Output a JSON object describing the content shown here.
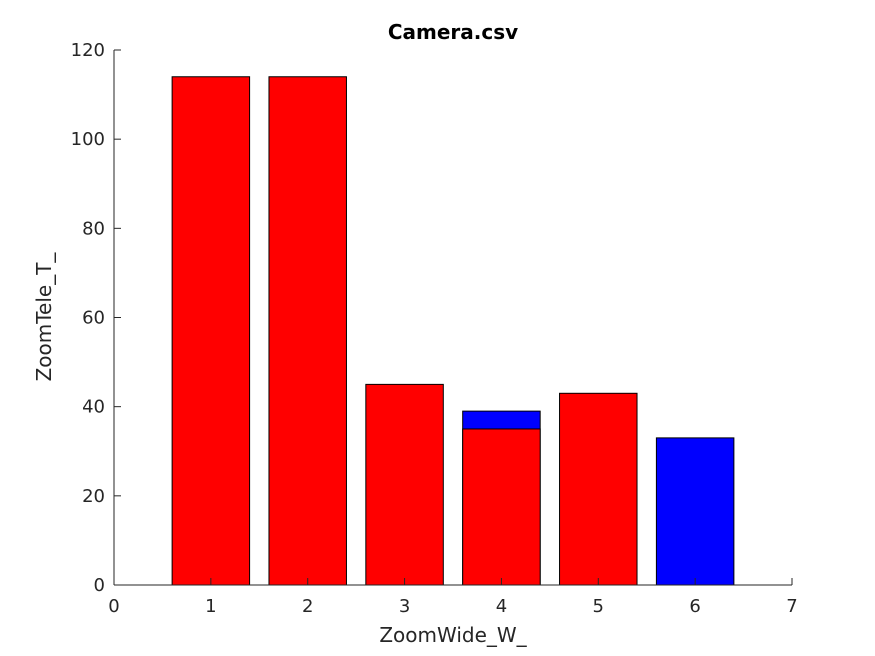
{
  "chart_data": {
    "type": "bar",
    "title": "Camera.csv",
    "xlabel": "ZoomWide_W_",
    "ylabel": "ZoomTele_T_",
    "xlim": [
      0,
      7
    ],
    "ylim": [
      0,
      120
    ],
    "xticks": [
      0,
      1,
      2,
      3,
      4,
      5,
      6,
      7
    ],
    "yticks": [
      0,
      20,
      40,
      60,
      80,
      100,
      120
    ],
    "grid": false,
    "colors": {
      "red": "#ff0000",
      "blue": "#0000ff",
      "edge": "#000000",
      "axis": "#262626"
    },
    "bars": [
      {
        "x": 1,
        "layers": [
          {
            "color": "#ff0000",
            "value": 114
          }
        ]
      },
      {
        "x": 2,
        "layers": [
          {
            "color": "#ff0000",
            "value": 114
          }
        ]
      },
      {
        "x": 3,
        "layers": [
          {
            "color": "#ff0000",
            "value": 45
          }
        ]
      },
      {
        "x": 4,
        "layers": [
          {
            "color": "#0000ff",
            "value": 39
          },
          {
            "color": "#ff0000",
            "value": 35
          }
        ]
      },
      {
        "x": 5,
        "layers": [
          {
            "color": "#ff0000",
            "value": 43
          }
        ]
      },
      {
        "x": 6,
        "layers": [
          {
            "color": "#0000ff",
            "value": 33
          }
        ]
      }
    ]
  }
}
